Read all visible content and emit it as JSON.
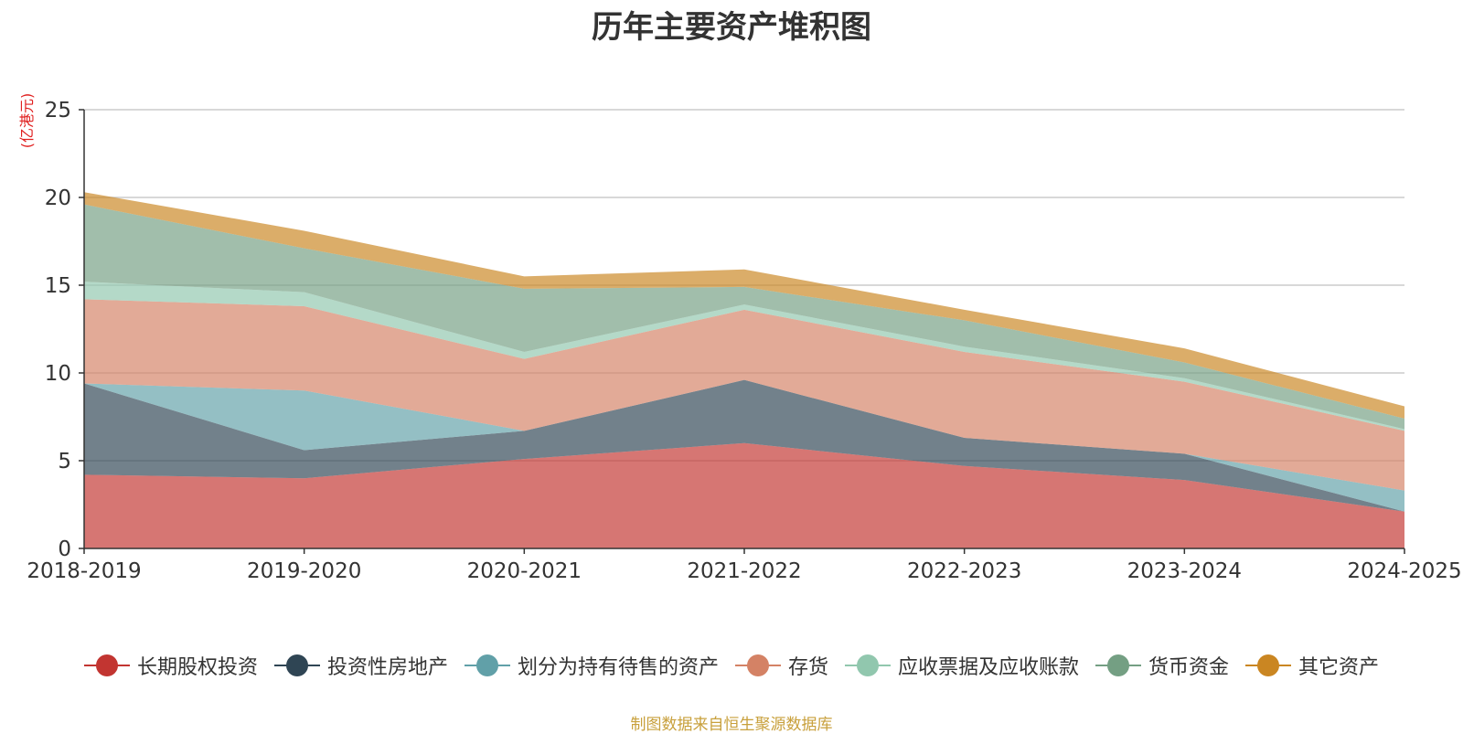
{
  "chart_data": {
    "type": "area",
    "stacked": true,
    "title": "历年主要资产堆积图",
    "ylabel": "(亿港元)",
    "xlabel": "",
    "ylim": [
      0,
      25
    ],
    "yticks": [
      0,
      5,
      10,
      15,
      20,
      25
    ],
    "grid": true,
    "legend_position": "bottom",
    "categories": [
      "2018-2019",
      "2019-2020",
      "2020-2021",
      "2021-2022",
      "2022-2023",
      "2023-2024",
      "2024-2025"
    ],
    "series": [
      {
        "name": "长期股权投资",
        "color": "#c23531",
        "values": [
          4.2,
          4.0,
          5.1,
          6.0,
          4.7,
          3.9,
          2.1
        ]
      },
      {
        "name": "投资性房地产",
        "color": "#2f4554",
        "values": [
          5.2,
          1.6,
          1.6,
          3.6,
          1.6,
          1.5,
          0.0
        ]
      },
      {
        "name": "划分为持有待售的资产",
        "color": "#61a0a8",
        "values": [
          0.0,
          3.4,
          0.0,
          0.0,
          0.0,
          0.0,
          1.2
        ]
      },
      {
        "name": "存货",
        "color": "#d48265",
        "values": [
          4.8,
          4.8,
          4.1,
          4.0,
          4.9,
          4.1,
          3.4
        ]
      },
      {
        "name": "应收票据及应收账款",
        "color": "#91c7ae",
        "values": [
          1.0,
          0.8,
          0.4,
          0.3,
          0.3,
          0.2,
          0.1
        ]
      },
      {
        "name": "货币资金",
        "color": "#749f83",
        "values": [
          4.4,
          2.5,
          3.6,
          1.0,
          1.5,
          0.9,
          0.6
        ]
      },
      {
        "name": "其它资产",
        "color": "#ca8622",
        "values": [
          0.7,
          1.0,
          0.7,
          1.0,
          0.6,
          0.8,
          0.7
        ]
      }
    ]
  },
  "footer": {
    "source_note": "制图数据来自恒生聚源数据库"
  }
}
